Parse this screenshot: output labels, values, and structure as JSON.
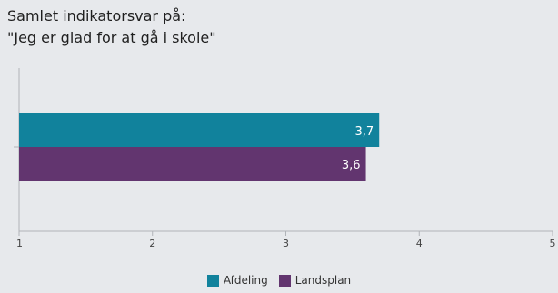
{
  "title": {
    "line1": "Samlet indikatorsvar på:",
    "line2": "\"Jeg er glad for at gå i skole\""
  },
  "chart_data": {
    "type": "bar",
    "orientation": "horizontal",
    "categories": [
      ""
    ],
    "series": [
      {
        "name": "Afdeling",
        "values": [
          3.7
        ],
        "label": "3,7",
        "color": "#11829c"
      },
      {
        "name": "Landsplan",
        "values": [
          3.6
        ],
        "label": "3,6",
        "color": "#62356f"
      }
    ],
    "xlim": [
      1,
      5
    ],
    "xticks": [
      1,
      2,
      3,
      4,
      5
    ],
    "grid": false,
    "legend_position": "bottom"
  },
  "legend": [
    {
      "label": "Afdeling",
      "color": "#11829c"
    },
    {
      "label": "Landsplan",
      "color": "#62356f"
    }
  ]
}
